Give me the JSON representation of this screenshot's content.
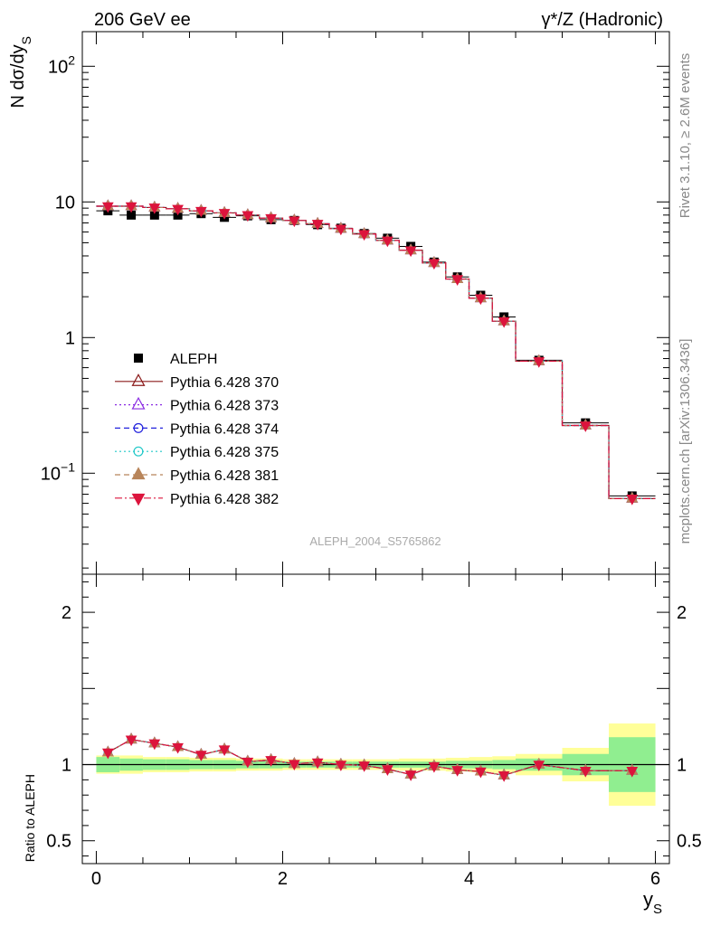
{
  "header": {
    "left": "206 GeV ee",
    "right": "γ*/Z (Hadronic)"
  },
  "side_labels": {
    "rivet": "Rivet 3.1.10, ≥ 2.6M events",
    "mcplots": "mcplots.cern.ch [arXiv:1306.3436]"
  },
  "watermark": "ALEPH_2004_S5765862",
  "chart_data": [
    {
      "type": "scatter",
      "panel": "main",
      "ylabel": "N dσ/dy_S",
      "yscale": "log",
      "ylim": [
        0.018,
        180
      ],
      "xlim": [
        -0.15,
        6.15
      ],
      "x_ticks": [
        0,
        2,
        4,
        6
      ],
      "y_ticks": [
        {
          "value": 100,
          "label": "10^2"
        },
        {
          "value": 10,
          "label": "10"
        },
        {
          "value": 1,
          "label": "1"
        },
        {
          "value": 0.1,
          "label": "10^-1"
        }
      ],
      "legend_position": "center-left",
      "x": [
        0.125,
        0.375,
        0.625,
        0.875,
        1.125,
        1.375,
        1.625,
        1.875,
        2.125,
        2.375,
        2.625,
        2.875,
        3.125,
        3.375,
        3.625,
        3.875,
        4.125,
        4.375,
        4.75,
        5.25,
        5.75
      ],
      "x_err": [
        0.125,
        0.125,
        0.125,
        0.125,
        0.125,
        0.125,
        0.125,
        0.125,
        0.125,
        0.125,
        0.125,
        0.125,
        0.125,
        0.125,
        0.125,
        0.125,
        0.125,
        0.125,
        0.25,
        0.25,
        0.25
      ],
      "series": [
        {
          "name": "ALEPH",
          "style": "data",
          "marker": "square-filled",
          "color": "#000000",
          "values": [
            8.6,
            8.0,
            8.0,
            8.0,
            8.2,
            7.7,
            7.9,
            7.4,
            7.3,
            6.8,
            6.4,
            5.85,
            5.4,
            4.7,
            3.6,
            2.8,
            2.05,
            1.42,
            0.68,
            0.235,
            0.068
          ]
        },
        {
          "name": "Pythia 6.428 370",
          "style": "solid",
          "marker": "triangle-up-open",
          "color": "#8b1a1a",
          "values": [
            9.3,
            9.3,
            9.1,
            8.9,
            8.6,
            8.3,
            8.0,
            7.6,
            7.3,
            6.9,
            6.35,
            5.8,
            5.2,
            4.4,
            3.55,
            2.7,
            1.95,
            1.32,
            0.67,
            0.225,
            0.065
          ]
        },
        {
          "name": "Pythia 6.428 373",
          "style": "dotted",
          "marker": "triangle-up-open",
          "color": "#8a2be2",
          "values": [
            9.3,
            9.3,
            9.1,
            8.9,
            8.6,
            8.3,
            8.0,
            7.6,
            7.3,
            6.9,
            6.35,
            5.8,
            5.2,
            4.4,
            3.55,
            2.7,
            1.95,
            1.32,
            0.67,
            0.225,
            0.065
          ]
        },
        {
          "name": "Pythia 6.428 374",
          "style": "dashed",
          "marker": "circle-open",
          "color": "#2222dd",
          "values": [
            9.3,
            9.3,
            9.1,
            8.9,
            8.6,
            8.3,
            8.0,
            7.6,
            7.3,
            6.9,
            6.35,
            5.8,
            5.2,
            4.4,
            3.55,
            2.7,
            1.95,
            1.32,
            0.67,
            0.225,
            0.065
          ]
        },
        {
          "name": "Pythia 6.428 375",
          "style": "dotted",
          "marker": "circle-open",
          "color": "#20c8c8",
          "values": [
            9.3,
            9.3,
            9.1,
            8.9,
            8.6,
            8.3,
            8.0,
            7.6,
            7.3,
            6.9,
            6.35,
            5.8,
            5.2,
            4.4,
            3.55,
            2.7,
            1.95,
            1.32,
            0.67,
            0.225,
            0.065
          ]
        },
        {
          "name": "Pythia 6.428 381",
          "style": "dashed",
          "marker": "triangle-up-filled",
          "color": "#b8855a",
          "values": [
            9.3,
            9.3,
            9.1,
            8.9,
            8.6,
            8.3,
            8.0,
            7.6,
            7.3,
            6.9,
            6.35,
            5.8,
            5.2,
            4.4,
            3.55,
            2.7,
            1.95,
            1.32,
            0.67,
            0.225,
            0.065
          ]
        },
        {
          "name": "Pythia 6.428 382",
          "style": "dashdot",
          "marker": "triangle-down-filled",
          "color": "#dc143c",
          "values": [
            9.3,
            9.3,
            9.1,
            8.9,
            8.6,
            8.3,
            8.0,
            7.6,
            7.3,
            6.9,
            6.35,
            5.8,
            5.2,
            4.4,
            3.55,
            2.7,
            1.95,
            1.32,
            0.67,
            0.225,
            0.065
          ]
        }
      ]
    },
    {
      "type": "scatter",
      "panel": "ratio",
      "ylabel": "Ratio to ALEPH",
      "xlabel": "y_S",
      "ylim": [
        0.35,
        2.25
      ],
      "xlim": [
        -0.15,
        6.15
      ],
      "x_ticks": [
        0,
        2,
        4,
        6
      ],
      "y_ticks": [
        {
          "value": 2,
          "label": "2"
        },
        {
          "value": 1,
          "label": "1"
        },
        {
          "value": 0.5,
          "label": "0.5"
        }
      ],
      "band_colors": {
        "inner": "#90ee90",
        "outer": "#ffff99"
      },
      "x": [
        0.125,
        0.375,
        0.625,
        0.875,
        1.125,
        1.375,
        1.625,
        1.875,
        2.125,
        2.375,
        2.625,
        2.875,
        3.125,
        3.375,
        3.625,
        3.875,
        4.125,
        4.375,
        4.75,
        5.25,
        5.75
      ],
      "x_err": [
        0.125,
        0.125,
        0.125,
        0.125,
        0.125,
        0.125,
        0.125,
        0.125,
        0.125,
        0.125,
        0.125,
        0.125,
        0.125,
        0.125,
        0.125,
        0.125,
        0.125,
        0.125,
        0.25,
        0.25,
        0.25
      ],
      "band_inner": [
        0.05,
        0.04,
        0.035,
        0.035,
        0.03,
        0.03,
        0.025,
        0.025,
        0.02,
        0.02,
        0.02,
        0.02,
        0.02,
        0.02,
        0.02,
        0.025,
        0.025,
        0.03,
        0.04,
        0.07,
        0.18
      ],
      "band_outer": [
        0.06,
        0.06,
        0.05,
        0.05,
        0.045,
        0.045,
        0.04,
        0.04,
        0.035,
        0.035,
        0.035,
        0.035,
        0.035,
        0.04,
        0.04,
        0.045,
        0.05,
        0.055,
        0.07,
        0.11,
        0.27
      ],
      "series": [
        {
          "name": "Pythia 6.428 370",
          "values": [
            1.08,
            1.165,
            1.14,
            1.115,
            1.065,
            1.1,
            1.02,
            1.03,
            1.005,
            1.015,
            1.0,
            0.995,
            0.97,
            0.935,
            0.99,
            0.965,
            0.955,
            0.93,
            1.0,
            0.96,
            0.96
          ]
        },
        {
          "name": "Pythia 6.428 382",
          "values": [
            1.08,
            1.165,
            1.14,
            1.115,
            1.065,
            1.1,
            1.02,
            1.03,
            1.005,
            1.015,
            1.0,
            0.995,
            0.97,
            0.935,
            0.99,
            0.965,
            0.955,
            0.93,
            1.0,
            0.96,
            0.96
          ]
        }
      ]
    }
  ]
}
